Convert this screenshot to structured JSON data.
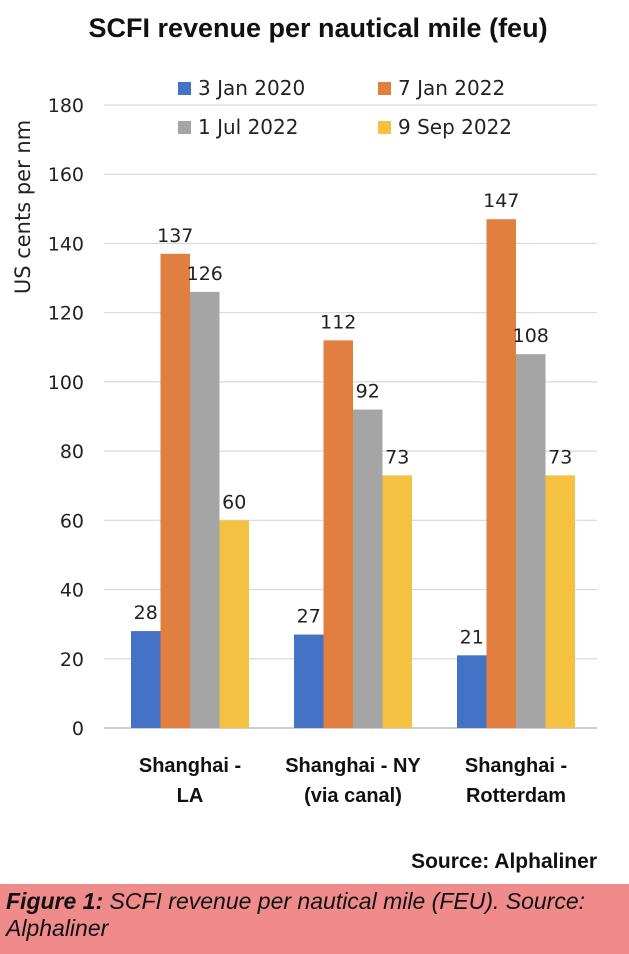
{
  "chart_data": {
    "type": "bar",
    "title": "SCFI revenue per nautical mile (feu)",
    "ylabel": "US cents per nm",
    "xlabel": "",
    "ylim": [
      0,
      180
    ],
    "yticks": [
      0,
      20,
      40,
      60,
      80,
      100,
      120,
      140,
      160,
      180
    ],
    "grid": true,
    "legend_position": "top",
    "categories": [
      [
        "Shanghai -",
        "LA"
      ],
      [
        "Shanghai - NY",
        "(via canal)"
      ],
      [
        "Shanghai -",
        "Rotterdam"
      ]
    ],
    "series": [
      {
        "name": "3 Jan 2020",
        "color": "#4472c4",
        "values": [
          28,
          27,
          21
        ]
      },
      {
        "name": "7 Jan 2022",
        "color": "#e07f3f",
        "values": [
          137,
          112,
          147
        ]
      },
      {
        "name": "1 Jul 2022",
        "color": "#a5a5a5",
        "values": [
          126,
          92,
          108
        ]
      },
      {
        "name": "9 Sep 2022",
        "color": "#f4c142",
        "values": [
          60,
          73,
          73
        ]
      }
    ],
    "source": "Source: Alphaliner"
  },
  "caption": {
    "label": "Figure 1:",
    "text": " SCFI revenue per nautical mile (FEU). Source: Alphaliner"
  }
}
